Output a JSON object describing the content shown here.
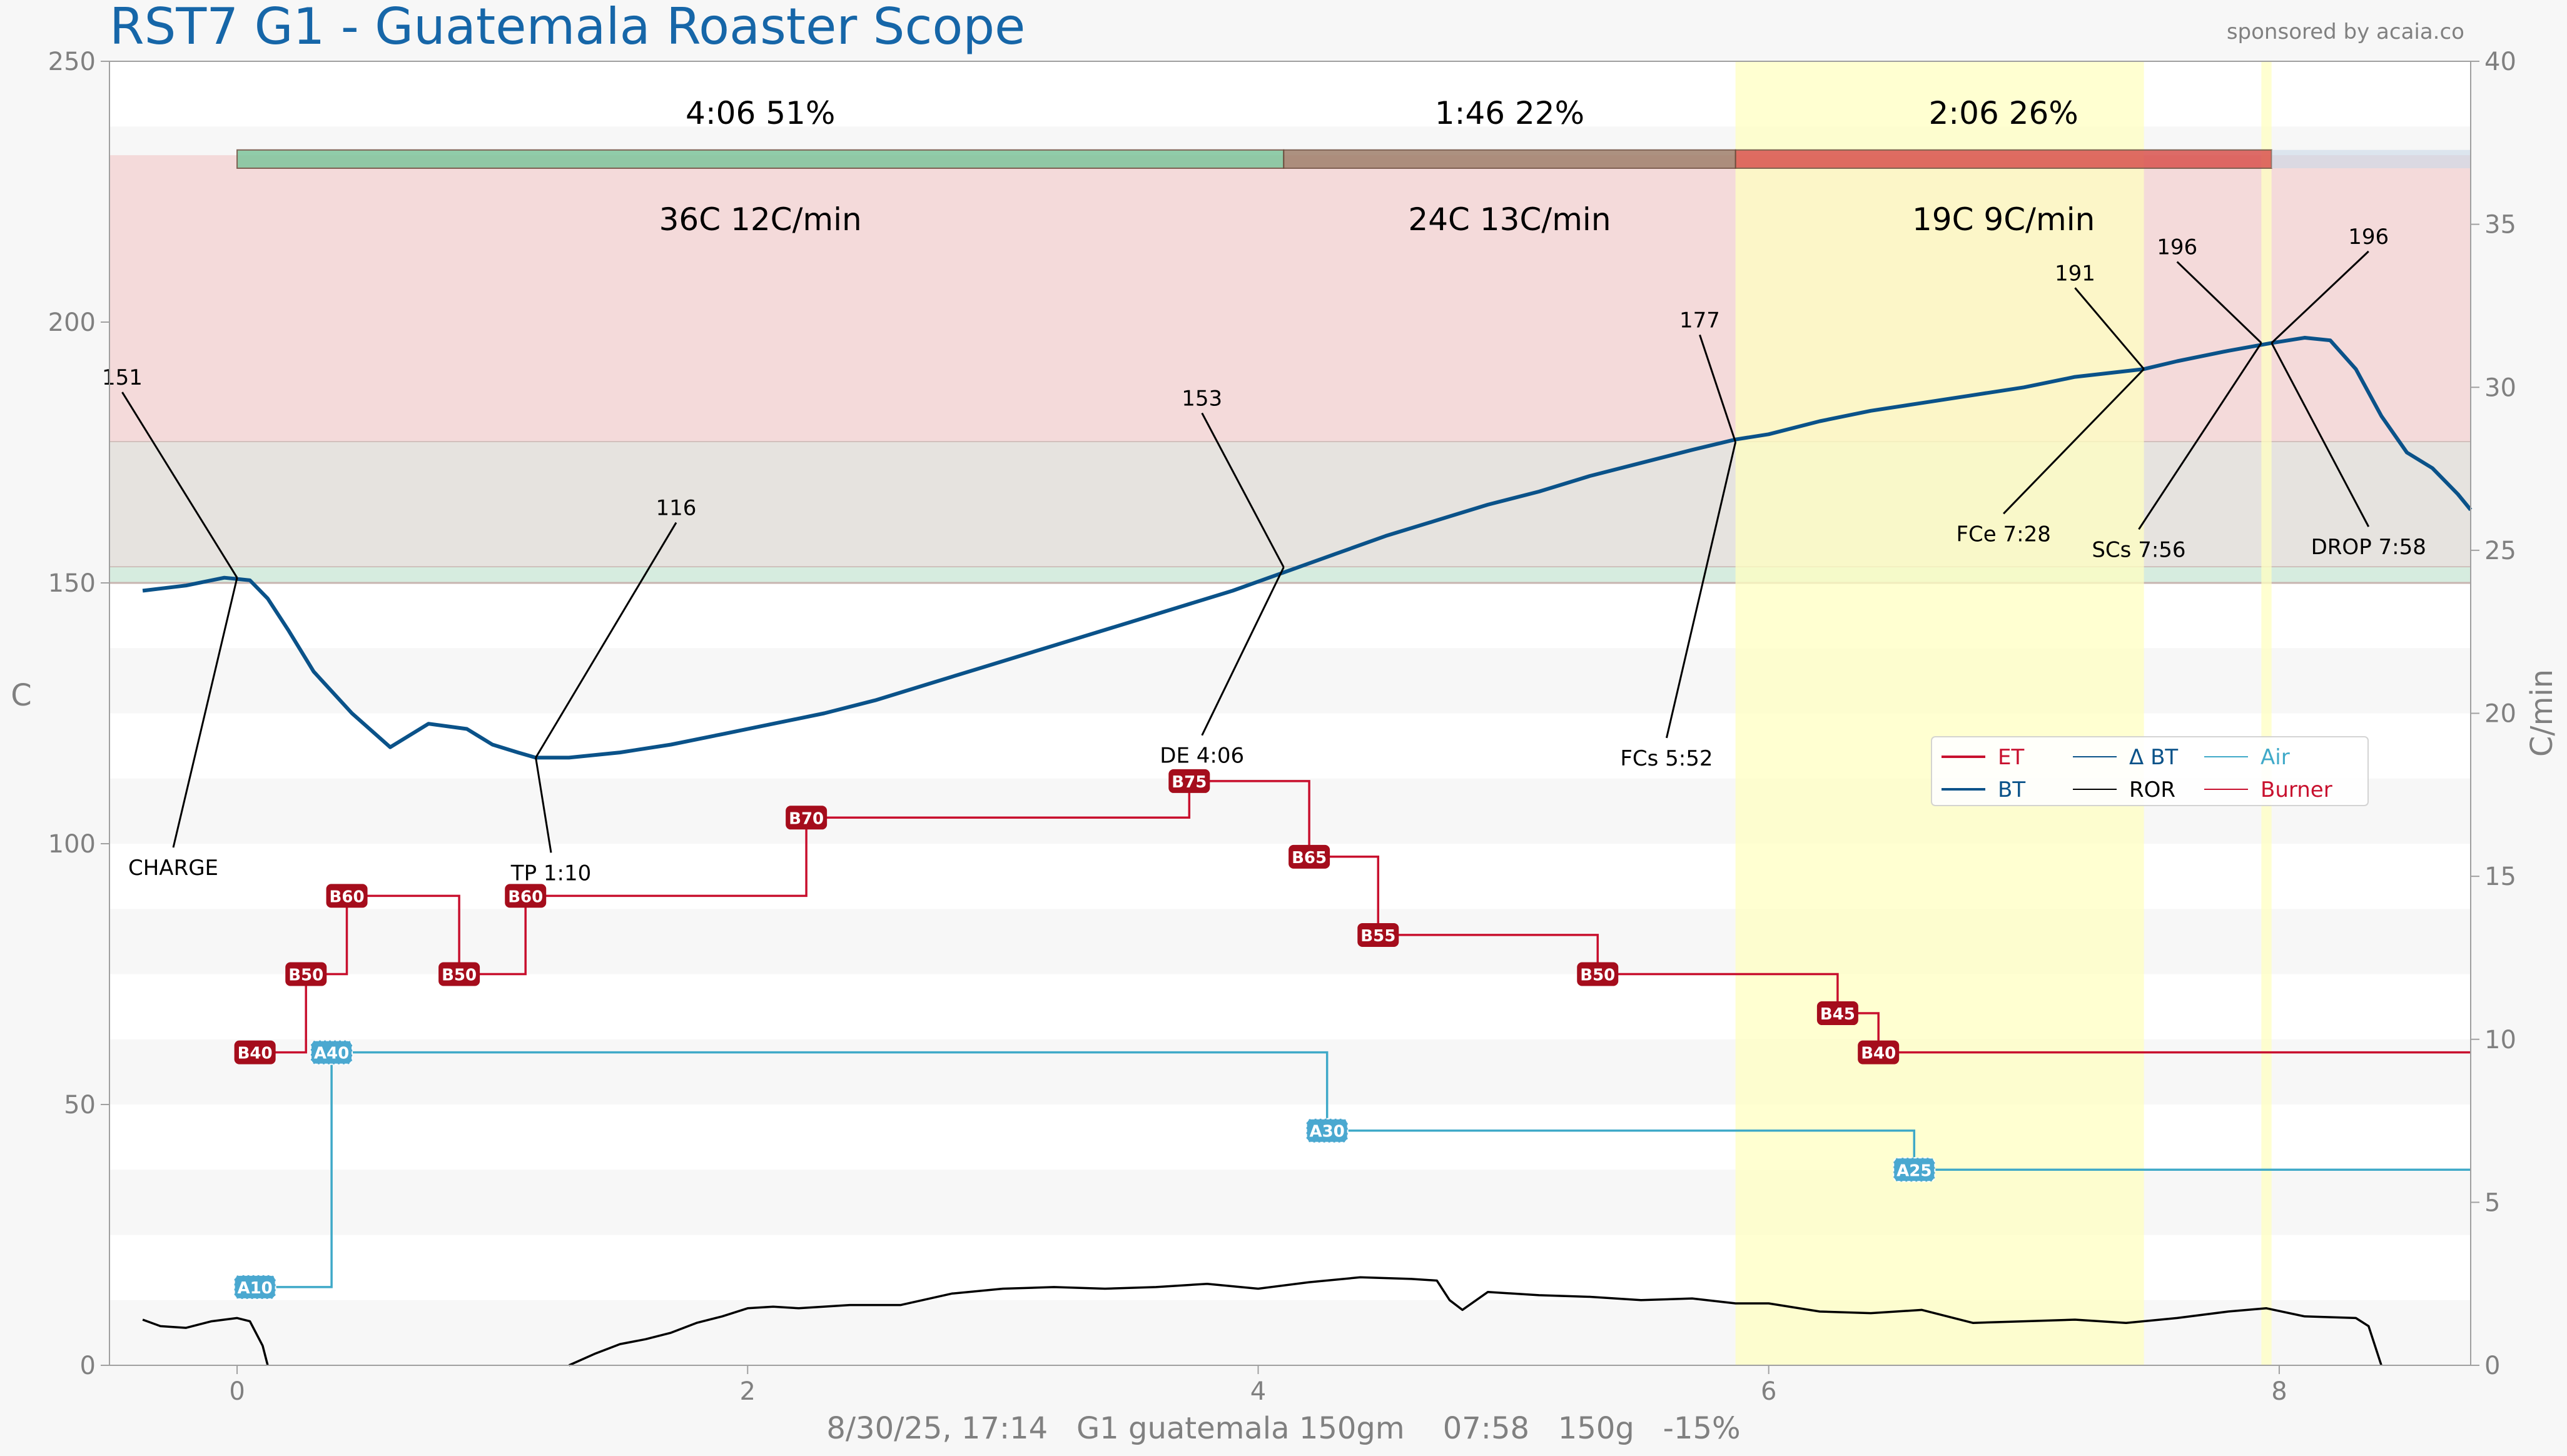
{
  "header": {
    "title": "RST7 G1 - Guatemala Roaster Scope",
    "sponsor": "sponsored by acaia.co",
    "footer": "8/30/25, 17:14   G1 guatemala 150gm    07:58   150g   -15%"
  },
  "colors": {
    "et": "#c8102e",
    "bt": "#0a5289",
    "delta_bt": "#0a5289",
    "ror": "#000000",
    "air": "#3fa9c8",
    "burner": "#c8102e",
    "marker_burner": "#a50d1c",
    "marker_air": "#4aa8d0",
    "phase_drying": "#7fc59c",
    "phase_maillard": "#a0806c",
    "phase_development": "#d9534f",
    "phase_after": "#c9d8e8",
    "band_red": "#f4dada",
    "band_gray": "#e6e3df",
    "band_green": "#d6ecdf",
    "highlight_yellow": "#ffffc2"
  },
  "chart_data": {
    "type": "line",
    "xlim": [
      -0.5,
      8.75
    ],
    "ylim": [
      0,
      250
    ],
    "y2lim": [
      0,
      40
    ],
    "ylabel": "C",
    "y2label": "C/min",
    "x_ticks": [
      0,
      2,
      4,
      6,
      8
    ],
    "y_ticks": [
      0,
      50,
      100,
      150,
      200,
      250
    ],
    "y2_ticks": [
      0,
      5,
      10,
      15,
      20,
      25,
      30,
      35,
      40
    ],
    "grid": "horizontal bands",
    "legend": {
      "position": "right-middle",
      "items": [
        {
          "label": "ET",
          "key": "et",
          "width": 4
        },
        {
          "label": "BT",
          "key": "bt",
          "width": 4
        },
        {
          "label": "Δ BT",
          "key": "delta_bt",
          "width": 2
        },
        {
          "label": "ROR",
          "key": "ror",
          "width": 2
        },
        {
          "label": "Air",
          "key": "air",
          "width": 2
        },
        {
          "label": "Burner",
          "key": "burner",
          "width": 2
        }
      ]
    },
    "phases": [
      {
        "name": "drying",
        "x0": 0,
        "x1": 4.1,
        "time": "4:06",
        "pct": "51%",
        "rise": "36C  12C/min"
      },
      {
        "name": "maillard",
        "x0": 4.1,
        "x1": 5.87,
        "time": "1:46",
        "pct": "22%",
        "rise": "24C  13C/min"
      },
      {
        "name": "development",
        "x0": 5.87,
        "x1": 7.97,
        "time": "2:06",
        "pct": "26%",
        "rise": "19C  9C/min"
      },
      {
        "name": "after",
        "x0": 7.97,
        "x1": 8.75,
        "time": "",
        "pct": "",
        "rise": ""
      }
    ],
    "phase_bar_y": [
      229.5,
      233
    ],
    "temp_bands": [
      {
        "key": "band_red",
        "y0": 177,
        "y1": 232
      },
      {
        "key": "band_gray",
        "y0": 153,
        "y1": 177
      },
      {
        "key": "band_green",
        "y0": 150,
        "y1": 153
      }
    ],
    "highlights": [
      {
        "x0": 5.87,
        "x1": 7.47
      },
      {
        "x0": 7.93,
        "x1": 7.97
      }
    ],
    "series": [
      {
        "name": "BT",
        "key": "bt",
        "axis": "left",
        "points": [
          [
            -0.37,
            148.5
          ],
          [
            -0.2,
            149.5
          ],
          [
            -0.05,
            151
          ],
          [
            0.05,
            150.5
          ],
          [
            0.12,
            147
          ],
          [
            0.2,
            141
          ],
          [
            0.3,
            133
          ],
          [
            0.45,
            125
          ],
          [
            0.6,
            118.5
          ],
          [
            0.75,
            123
          ],
          [
            0.9,
            122
          ],
          [
            1.0,
            119
          ],
          [
            1.1,
            117.5
          ],
          [
            1.17,
            116.5
          ],
          [
            1.3,
            116.5
          ],
          [
            1.5,
            117.5
          ],
          [
            1.7,
            119
          ],
          [
            1.9,
            121
          ],
          [
            2.1,
            123
          ],
          [
            2.3,
            125
          ],
          [
            2.5,
            127.5
          ],
          [
            2.7,
            130.5
          ],
          [
            2.9,
            133.5
          ],
          [
            3.1,
            136.5
          ],
          [
            3.3,
            139.5
          ],
          [
            3.5,
            142.5
          ],
          [
            3.7,
            145.5
          ],
          [
            3.9,
            148.5
          ],
          [
            4.1,
            152
          ],
          [
            4.3,
            155.5
          ],
          [
            4.5,
            159
          ],
          [
            4.7,
            162
          ],
          [
            4.9,
            165
          ],
          [
            5.1,
            167.5
          ],
          [
            5.3,
            170.5
          ],
          [
            5.5,
            173
          ],
          [
            5.7,
            175.5
          ],
          [
            5.87,
            177.5
          ],
          [
            6.0,
            178.5
          ],
          [
            6.2,
            181
          ],
          [
            6.4,
            183
          ],
          [
            6.6,
            184.5
          ],
          [
            6.8,
            186
          ],
          [
            7.0,
            187.5
          ],
          [
            7.2,
            189.5
          ],
          [
            7.47,
            191
          ],
          [
            7.6,
            192.5
          ],
          [
            7.8,
            194.5
          ],
          [
            7.97,
            196
          ],
          [
            8.1,
            197
          ],
          [
            8.2,
            196.5
          ],
          [
            8.3,
            191
          ],
          [
            8.4,
            182
          ],
          [
            8.5,
            175
          ],
          [
            8.6,
            172
          ],
          [
            8.7,
            167
          ],
          [
            8.75,
            164
          ]
        ]
      },
      {
        "name": "ROR",
        "key": "ror",
        "axis": "right",
        "points": [
          [
            -0.37,
            1.4
          ],
          [
            -0.3,
            1.2
          ],
          [
            -0.2,
            1.15
          ],
          [
            -0.1,
            1.35
          ],
          [
            0.0,
            1.45
          ],
          [
            0.05,
            1.35
          ],
          [
            0.1,
            0.6
          ],
          [
            0.12,
            0.0
          ]
        ],
        "points2": [
          [
            1.3,
            0.0
          ],
          [
            1.4,
            0.35
          ],
          [
            1.5,
            0.65
          ],
          [
            1.6,
            0.8
          ],
          [
            1.7,
            1.0
          ],
          [
            1.8,
            1.3
          ],
          [
            1.9,
            1.5
          ],
          [
            2.0,
            1.75
          ],
          [
            2.1,
            1.8
          ],
          [
            2.2,
            1.75
          ],
          [
            2.4,
            1.85
          ],
          [
            2.6,
            1.85
          ],
          [
            2.8,
            2.2
          ],
          [
            3.0,
            2.35
          ],
          [
            3.2,
            2.4
          ],
          [
            3.4,
            2.35
          ],
          [
            3.6,
            2.4
          ],
          [
            3.8,
            2.5
          ],
          [
            4.0,
            2.35
          ],
          [
            4.2,
            2.55
          ],
          [
            4.4,
            2.7
          ],
          [
            4.6,
            2.65
          ],
          [
            4.7,
            2.6
          ],
          [
            4.75,
            2.0
          ],
          [
            4.8,
            1.7
          ],
          [
            4.9,
            2.25
          ],
          [
            5.1,
            2.15
          ],
          [
            5.3,
            2.1
          ],
          [
            5.5,
            2.0
          ],
          [
            5.7,
            2.05
          ],
          [
            5.87,
            1.9
          ],
          [
            6.0,
            1.9
          ],
          [
            6.2,
            1.65
          ],
          [
            6.4,
            1.6
          ],
          [
            6.6,
            1.7
          ],
          [
            6.8,
            1.3
          ],
          [
            7.0,
            1.35
          ],
          [
            7.2,
            1.4
          ],
          [
            7.4,
            1.3
          ],
          [
            7.6,
            1.45
          ],
          [
            7.8,
            1.65
          ],
          [
            7.95,
            1.75
          ],
          [
            8.1,
            1.5
          ],
          [
            8.3,
            1.45
          ],
          [
            8.35,
            1.2
          ],
          [
            8.4,
            0.0
          ]
        ]
      },
      {
        "name": "Burner",
        "key": "burner",
        "axis": "left",
        "steps": [
          [
            0.0,
            60
          ],
          [
            0.27,
            60
          ],
          [
            0.27,
            75
          ],
          [
            0.43,
            75
          ],
          [
            0.43,
            90
          ],
          [
            0.87,
            90
          ],
          [
            0.87,
            75
          ],
          [
            1.13,
            75
          ],
          [
            1.13,
            90
          ],
          [
            2.23,
            90
          ],
          [
            2.23,
            105
          ],
          [
            3.73,
            105
          ],
          [
            3.73,
            112
          ],
          [
            4.2,
            112
          ],
          [
            4.2,
            97.5
          ],
          [
            4.47,
            97.5
          ],
          [
            4.47,
            82.5
          ],
          [
            5.33,
            82.5
          ],
          [
            5.33,
            75
          ],
          [
            6.27,
            75
          ],
          [
            6.27,
            67.5
          ],
          [
            6.43,
            67.5
          ],
          [
            6.43,
            60
          ],
          [
            8.75,
            60
          ]
        ]
      },
      {
        "name": "Air",
        "key": "air",
        "axis": "left",
        "steps": [
          [
            0.0,
            15
          ],
          [
            0.37,
            15
          ],
          [
            0.37,
            60
          ],
          [
            4.27,
            60
          ],
          [
            4.27,
            45
          ],
          [
            6.57,
            45
          ],
          [
            6.57,
            37.5
          ],
          [
            8.75,
            37.5
          ]
        ]
      }
    ],
    "burner_markers": [
      {
        "label": "B40",
        "x": 0.07,
        "y": 60
      },
      {
        "label": "B50",
        "x": 0.27,
        "y": 75
      },
      {
        "label": "B60",
        "x": 0.43,
        "y": 90
      },
      {
        "label": "B50",
        "x": 0.87,
        "y": 75
      },
      {
        "label": "B60",
        "x": 1.13,
        "y": 90
      },
      {
        "label": "B70",
        "x": 2.23,
        "y": 105
      },
      {
        "label": "B75",
        "x": 3.73,
        "y": 112
      },
      {
        "label": "B65",
        "x": 4.2,
        "y": 97.5
      },
      {
        "label": "B55",
        "x": 4.47,
        "y": 82.5
      },
      {
        "label": "B50",
        "x": 5.33,
        "y": 75
      },
      {
        "label": "B45",
        "x": 6.27,
        "y": 67.5
      },
      {
        "label": "B40",
        "x": 6.43,
        "y": 60
      }
    ],
    "air_markers": [
      {
        "label": "A10",
        "x": 0.07,
        "y": 15
      },
      {
        "label": "A40",
        "x": 0.37,
        "y": 60
      },
      {
        "label": "A30",
        "x": 4.27,
        "y": 45
      },
      {
        "label": "A25",
        "x": 6.57,
        "y": 37.5
      }
    ],
    "annotations": [
      {
        "label": "CHARGE",
        "value": "151",
        "x": 0.0,
        "y": 151,
        "value_at": [
          -0.45,
          188
        ],
        "label_at": [
          -0.25,
          94
        ]
      },
      {
        "label": "TP 1:10",
        "value": "116",
        "x": 1.17,
        "y": 116.5,
        "value_at": [
          1.72,
          163
        ],
        "label_at": [
          1.23,
          93
        ]
      },
      {
        "label": "DE 4:06",
        "value": "153",
        "x": 4.1,
        "y": 153,
        "value_at": [
          3.78,
          184
        ],
        "label_at": [
          3.78,
          115.5
        ]
      },
      {
        "label": "FCs 5:52",
        "value": "177",
        "x": 5.87,
        "y": 177,
        "value_at": [
          5.73,
          199
        ],
        "label_at": [
          5.6,
          115
        ]
      },
      {
        "label": "FCe 7:28",
        "value": "191",
        "x": 7.47,
        "y": 191,
        "value_at": [
          7.2,
          208
        ],
        "label_at": [
          6.92,
          158
        ]
      },
      {
        "label": "SCs 7:56",
        "value": "196",
        "x": 7.93,
        "y": 196,
        "value_at": [
          7.6,
          213
        ],
        "label_at": [
          7.45,
          155
        ]
      },
      {
        "label": "DROP 7:58",
        "value": "196",
        "x": 7.97,
        "y": 196,
        "value_at": [
          8.35,
          215
        ],
        "label_at": [
          8.35,
          155.5
        ]
      }
    ]
  }
}
